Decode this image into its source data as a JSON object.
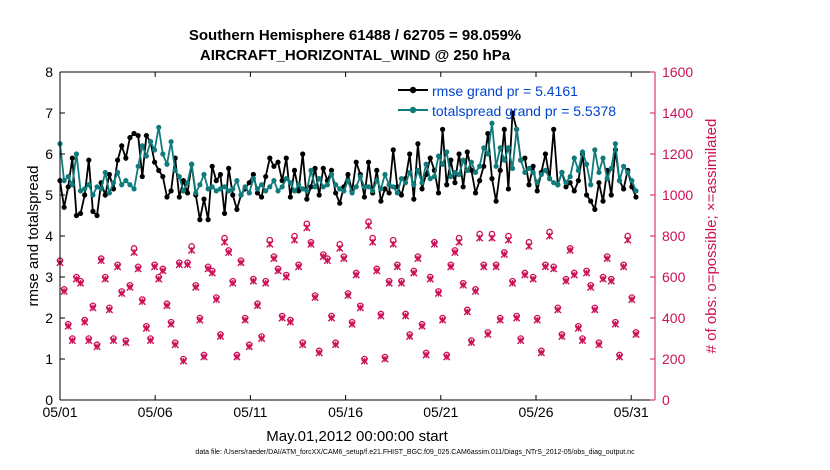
{
  "chart_data": {
    "type": "line",
    "title": "Southern Hemisphere 61488 / 62705 = 98.059%",
    "subtitle": "AIRCRAFT_HORIZONTAL_WIND @ 250 hPa",
    "xlabel": "May.01,2012 00:00:00 start",
    "ylabel": "rmse and totalspread",
    "y2label": "# of obs: o=possible; ×=assimilated",
    "x_tick_labels": [
      "05/01",
      "05/06",
      "05/11",
      "05/16",
      "05/21",
      "05/26",
      "05/31"
    ],
    "x_tick_days": [
      0,
      5,
      10,
      15,
      20,
      25,
      30
    ],
    "xlim": [
      0,
      31.25
    ],
    "ylim": [
      0,
      8
    ],
    "y_ticks": [
      0,
      1,
      2,
      3,
      4,
      5,
      6,
      7,
      8
    ],
    "y2lim": [
      0,
      1600
    ],
    "y2_ticks": [
      0,
      200,
      400,
      600,
      800,
      1000,
      1200,
      1400,
      1600
    ],
    "grid": false,
    "legend_position": "top-right",
    "colors": {
      "rmse": "#000000",
      "spread": "#0f7b7b",
      "obs": "#cc1158",
      "legend_text": "#0044cc",
      "right_axis": "#cc1158"
    },
    "series": [
      {
        "name": "rmse grand pr = 5.4161",
        "marker": "dot",
        "values": [
          5.35,
          4.7,
          5.2,
          5.9,
          4.5,
          4.55,
          5.0,
          5.85,
          4.6,
          4.5,
          5.3,
          5.0,
          5.5,
          5.15,
          5.85,
          6.2,
          5.9,
          6.4,
          6.5,
          6.45,
          5.45,
          6.45,
          6.3,
          5.8,
          5.6,
          5.45,
          4.95,
          5.1,
          5.9,
          4.95,
          5.35,
          5.05,
          5.75,
          5.0,
          4.4,
          4.9,
          4.4,
          5.7,
          5.35,
          5.5,
          4.55,
          5.65,
          5.0,
          4.65,
          5.0,
          5.15,
          5.3,
          5.5,
          5.05,
          4.95,
          5.45,
          5.9,
          5.7,
          5.8,
          5.35,
          5.9,
          4.95,
          5.6,
          5.1,
          6.0,
          4.9,
          5.2,
          5.65,
          5.0,
          5.65,
          5.35,
          5.6,
          5.05,
          4.8,
          5.2,
          5.5,
          5.1,
          5.8,
          5.5,
          4.95,
          5.8,
          5.05,
          5.6,
          4.85,
          5.15,
          5.05,
          6.1,
          5.2,
          5.0,
          5.4,
          6.0,
          4.9,
          6.25,
          5.15,
          5.5,
          5.9,
          5.6,
          5.05,
          6.6,
          5.25,
          5.85,
          5.3,
          6.0,
          5.2,
          6.05,
          5.6,
          5.05,
          5.35,
          5.7,
          6.5,
          5.4,
          4.85,
          5.6,
          6.6,
          5.15,
          7.0,
          6.6,
          5.85,
          5.9,
          5.25,
          5.7,
          5.1,
          5.55,
          6.0,
          5.4,
          6.6,
          5.25,
          5.55,
          5.2,
          5.3,
          5.1,
          5.35,
          6.0,
          5.0,
          4.85,
          4.65,
          5.3,
          4.85,
          5.6,
          5.0,
          6.1,
          5.35,
          5.15,
          5.6,
          5.2,
          4.95
        ]
      },
      {
        "name": "totalspread grand pr = 5.5378",
        "marker": "dot",
        "values": [
          6.25,
          5.35,
          5.45,
          5.25,
          6.0,
          5.1,
          5.15,
          5.25,
          5.0,
          5.2,
          5.15,
          5.55,
          5.05,
          5.3,
          5.55,
          5.25,
          5.35,
          5.25,
          5.15,
          5.7,
          6.2,
          5.95,
          6.3,
          6.1,
          6.65,
          6.0,
          5.75,
          6.3,
          5.6,
          5.45,
          5.1,
          5.3,
          5.75,
          5.05,
          5.25,
          5.5,
          5.15,
          5.2,
          5.1,
          5.15,
          5.2,
          5.1,
          5.15,
          5.35,
          5.0,
          5.2,
          5.05,
          5.4,
          5.15,
          5.25,
          5.1,
          5.2,
          5.35,
          5.1,
          5.2,
          5.4,
          5.3,
          5.1,
          5.25,
          5.15,
          5.1,
          5.6,
          5.2,
          5.4,
          5.2,
          5.25,
          5.5,
          5.25,
          5.15,
          5.1,
          5.35,
          5.05,
          5.2,
          5.45,
          5.2,
          5.2,
          5.1,
          5.35,
          5.15,
          5.5,
          5.25,
          5.2,
          5.05,
          5.4,
          5.3,
          5.55,
          5.25,
          5.6,
          5.3,
          5.75,
          5.4,
          5.45,
          5.95,
          5.75,
          6.05,
          5.45,
          5.55,
          5.5,
          5.85,
          5.6,
          5.8,
          5.55,
          5.7,
          6.15,
          6.0,
          6.75,
          5.7,
          6.15,
          5.85,
          6.15,
          5.65,
          6.6,
          5.85,
          5.55,
          5.65,
          5.55,
          5.3,
          5.5,
          5.6,
          5.4,
          5.3,
          5.25,
          5.55,
          5.3,
          5.45,
          5.9,
          5.6,
          6.05,
          5.75,
          5.25,
          6.1,
          5.55,
          5.9,
          5.4,
          5.65,
          6.25,
          5.35,
          5.7,
          5.55,
          5.35,
          5.1
        ]
      },
      {
        "name": "# of obs possible",
        "axis": "right",
        "marker": "circle",
        "values": [
          680,
          540,
          370,
          300,
          600,
          580,
          390,
          300,
          460,
          270,
          690,
          600,
          450,
          300,
          660,
          530,
          290,
          560,
          740,
          650,
          490,
          360,
          300,
          660,
          600,
          640,
          470,
          380,
          280,
          670,
          200,
          670,
          750,
          560,
          400,
          220,
          650,
          630,
          500,
          320,
          790,
          730,
          580,
          220,
          680,
          400,
          270,
          590,
          470,
          310,
          580,
          780,
          700,
          640,
          410,
          610,
          390,
          800,
          660,
          280,
          860,
          770,
          510,
          240,
          710,
          690,
          410,
          280,
          760,
          700,
          520,
          380,
          620,
          460,
          200,
          870,
          790,
          640,
          420,
          210,
          580,
          780,
          660,
          580,
          420,
          320,
          630,
          700,
          370,
          230,
          600,
          770,
          530,
          400,
          220,
          660,
          730,
          790,
          570,
          440,
          290,
          540,
          810,
          660,
          330,
          810,
          660,
          400,
          720,
          800,
          580,
          410,
          300,
          620,
          770,
          600,
          400,
          240,
          660,
          820,
          650,
          450,
          320,
          590,
          740,
          620,
          360,
          300,
          630,
          560,
          450,
          280,
          600,
          700,
          590,
          380,
          220,
          660,
          800,
          500,
          330
        ]
      },
      {
        "name": "# of obs assimilated",
        "axis": "right",
        "marker": "x",
        "values": [
          670,
          530,
          360,
          290,
          590,
          570,
          380,
          290,
          450,
          260,
          680,
          590,
          440,
          290,
          650,
          520,
          280,
          550,
          720,
          640,
          480,
          350,
          290,
          650,
          590,
          630,
          460,
          370,
          270,
          660,
          190,
          660,
          730,
          550,
          390,
          210,
          640,
          620,
          490,
          310,
          770,
          720,
          570,
          210,
          670,
          390,
          260,
          580,
          460,
          300,
          570,
          760,
          690,
          630,
          400,
          600,
          380,
          780,
          650,
          270,
          840,
          760,
          500,
          230,
          700,
          680,
          400,
          270,
          740,
          690,
          510,
          370,
          610,
          450,
          190,
          850,
          770,
          630,
          410,
          200,
          570,
          760,
          650,
          570,
          410,
          310,
          620,
          690,
          360,
          220,
          590,
          760,
          520,
          390,
          210,
          650,
          720,
          770,
          560,
          430,
          280,
          530,
          790,
          650,
          320,
          790,
          650,
          390,
          710,
          780,
          570,
          400,
          290,
          610,
          750,
          590,
          390,
          230,
          650,
          800,
          640,
          440,
          310,
          580,
          730,
          610,
          350,
          290,
          620,
          550,
          440,
          270,
          590,
          690,
          580,
          370,
          210,
          650,
          780,
          490,
          320
        ]
      }
    ]
  },
  "footnote": "data file: /Users/raeder/DAI/ATM_forcXX/CAM6_setup/f.e21.FHIST_BGC.f09_025.CAM6assim.011/Diags_NTrS_2012-05/obs_diag_output.nc"
}
